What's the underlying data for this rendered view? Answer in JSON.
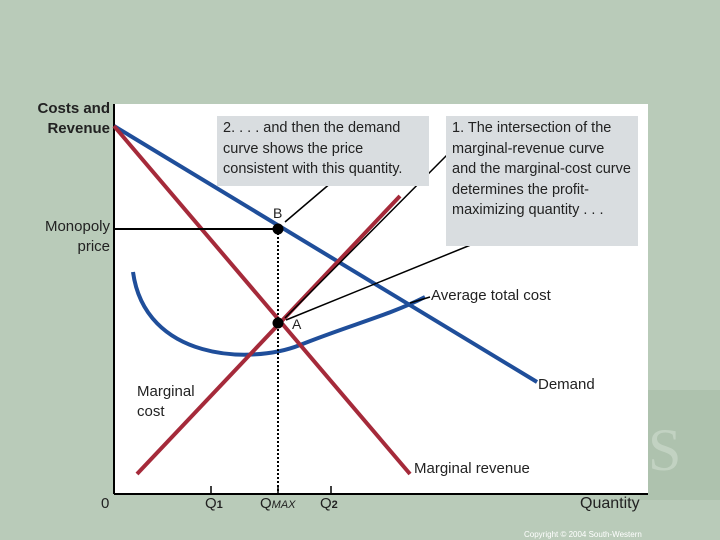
{
  "axes": {
    "y_label": "Costs and Revenue",
    "x_label": "Quantity",
    "origin": "0"
  },
  "price_label": "Monopoly price",
  "points": {
    "b": "B",
    "a": "A"
  },
  "quantities": {
    "q1": "Q",
    "q1_sub": "1",
    "qmax": "Q",
    "qmax_sub": "MAX",
    "q2": "Q",
    "q2_sub": "2"
  },
  "curves": {
    "atc": "Average total cost",
    "demand": "Demand",
    "mc": "Marginal cost",
    "mr": "Marginal revenue"
  },
  "notes": {
    "step2": "2. . . . and then the demand curve shows the price consistent with this quantity.",
    "step1": "1. The intersection of the marginal-revenue curve and the marginal-cost curve determines the profit-maximizing quantity . . ."
  },
  "copyright": "Copyright © 2004 South-Western",
  "colors": {
    "demand": "#1f4e9a",
    "atc": "#1f4e9a",
    "mr": "#a52a3a",
    "mc": "#a52a3a",
    "background": "#b9cbb9",
    "note_box": "#d9dde0"
  }
}
